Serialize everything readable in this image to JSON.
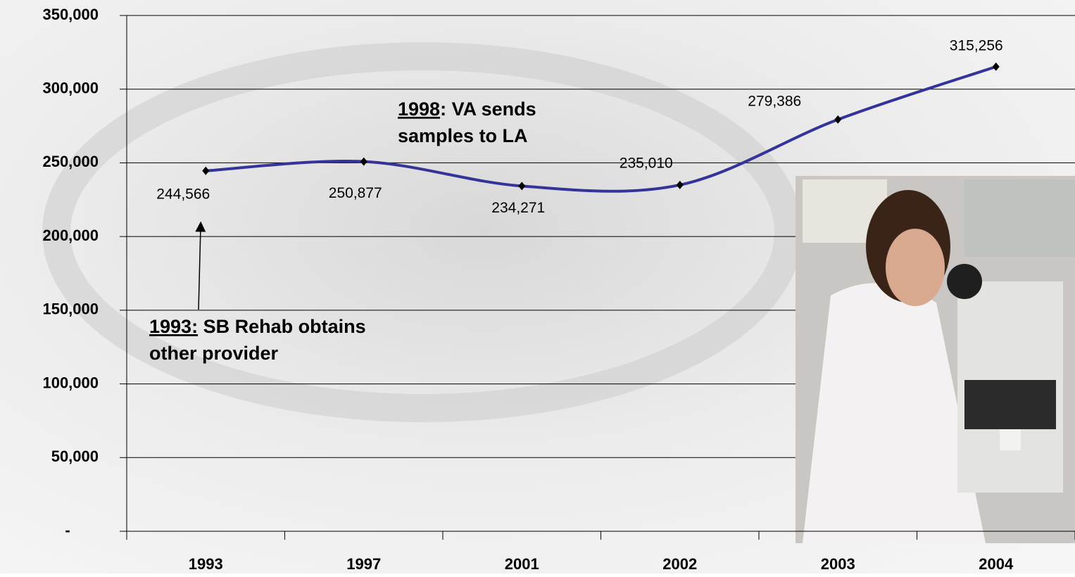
{
  "chart_data": {
    "type": "line",
    "categories": [
      "1993",
      "1997",
      "2001",
      "2002",
      "2003",
      "2004"
    ],
    "values": [
      244566,
      250877,
      234271,
      235010,
      279386,
      315256
    ],
    "value_labels": [
      "244,566",
      "250,877",
      "234,271",
      "235,010",
      "279,386",
      "315,256"
    ],
    "color": "#333399",
    "ylim": [
      0,
      350000
    ],
    "yticks": [
      {
        "value": 0,
        "label": "-"
      },
      {
        "value": 50000,
        "label": "50,000"
      },
      {
        "value": 100000,
        "label": "100,000"
      },
      {
        "value": 150000,
        "label": "150,000"
      },
      {
        "value": 200000,
        "label": "200,000"
      },
      {
        "value": 250000,
        "label": "250,000"
      },
      {
        "value": 300000,
        "label": "300,000"
      },
      {
        "value": 350000,
        "label": "350,000"
      }
    ],
    "grid": true,
    "annotations": [
      {
        "emphasis": "1998",
        "lines": [
          ": VA sends",
          "samples to LA"
        ]
      },
      {
        "emphasis": "1993:",
        "lines": [
          " SB Rehab obtains",
          "other provider"
        ]
      }
    ]
  }
}
